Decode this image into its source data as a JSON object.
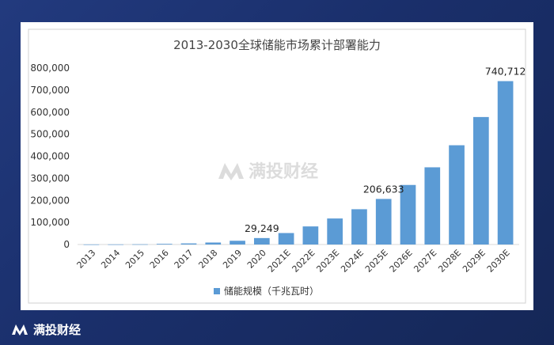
{
  "brand": {
    "logo_text": "满投财经"
  },
  "chart_data": {
    "type": "bar",
    "title": "2013-2030全球储能市场累计部署能力",
    "categories": [
      "2013",
      "2014",
      "2015",
      "2016",
      "2017",
      "2018",
      "2019",
      "2020",
      "2021E",
      "2022E",
      "2023E",
      "2024E",
      "2025E",
      "2026E",
      "2027E",
      "2028E",
      "2029E",
      "2030E"
    ],
    "series": [
      {
        "name": "储能规模（千兆瓦时）",
        "values": [
          300,
          500,
          1000,
          3000,
          5000,
          9000,
          17000,
          29249,
          52000,
          82000,
          118000,
          160000,
          206633,
          270000,
          350000,
          450000,
          578000,
          740712
        ]
      }
    ],
    "data_labels": {
      "7": "29,249",
      "12": "206,633",
      "17": "740,712"
    },
    "yticks": [
      "0",
      "100,000",
      "200,000",
      "300,000",
      "400,000",
      "500,000",
      "600,000",
      "700,000",
      "800,000"
    ],
    "ylim": [
      0,
      800000
    ],
    "bar_color": "#5b9bd5",
    "legend": "bottom",
    "grid": false,
    "xlabel": "",
    "ylabel": ""
  }
}
